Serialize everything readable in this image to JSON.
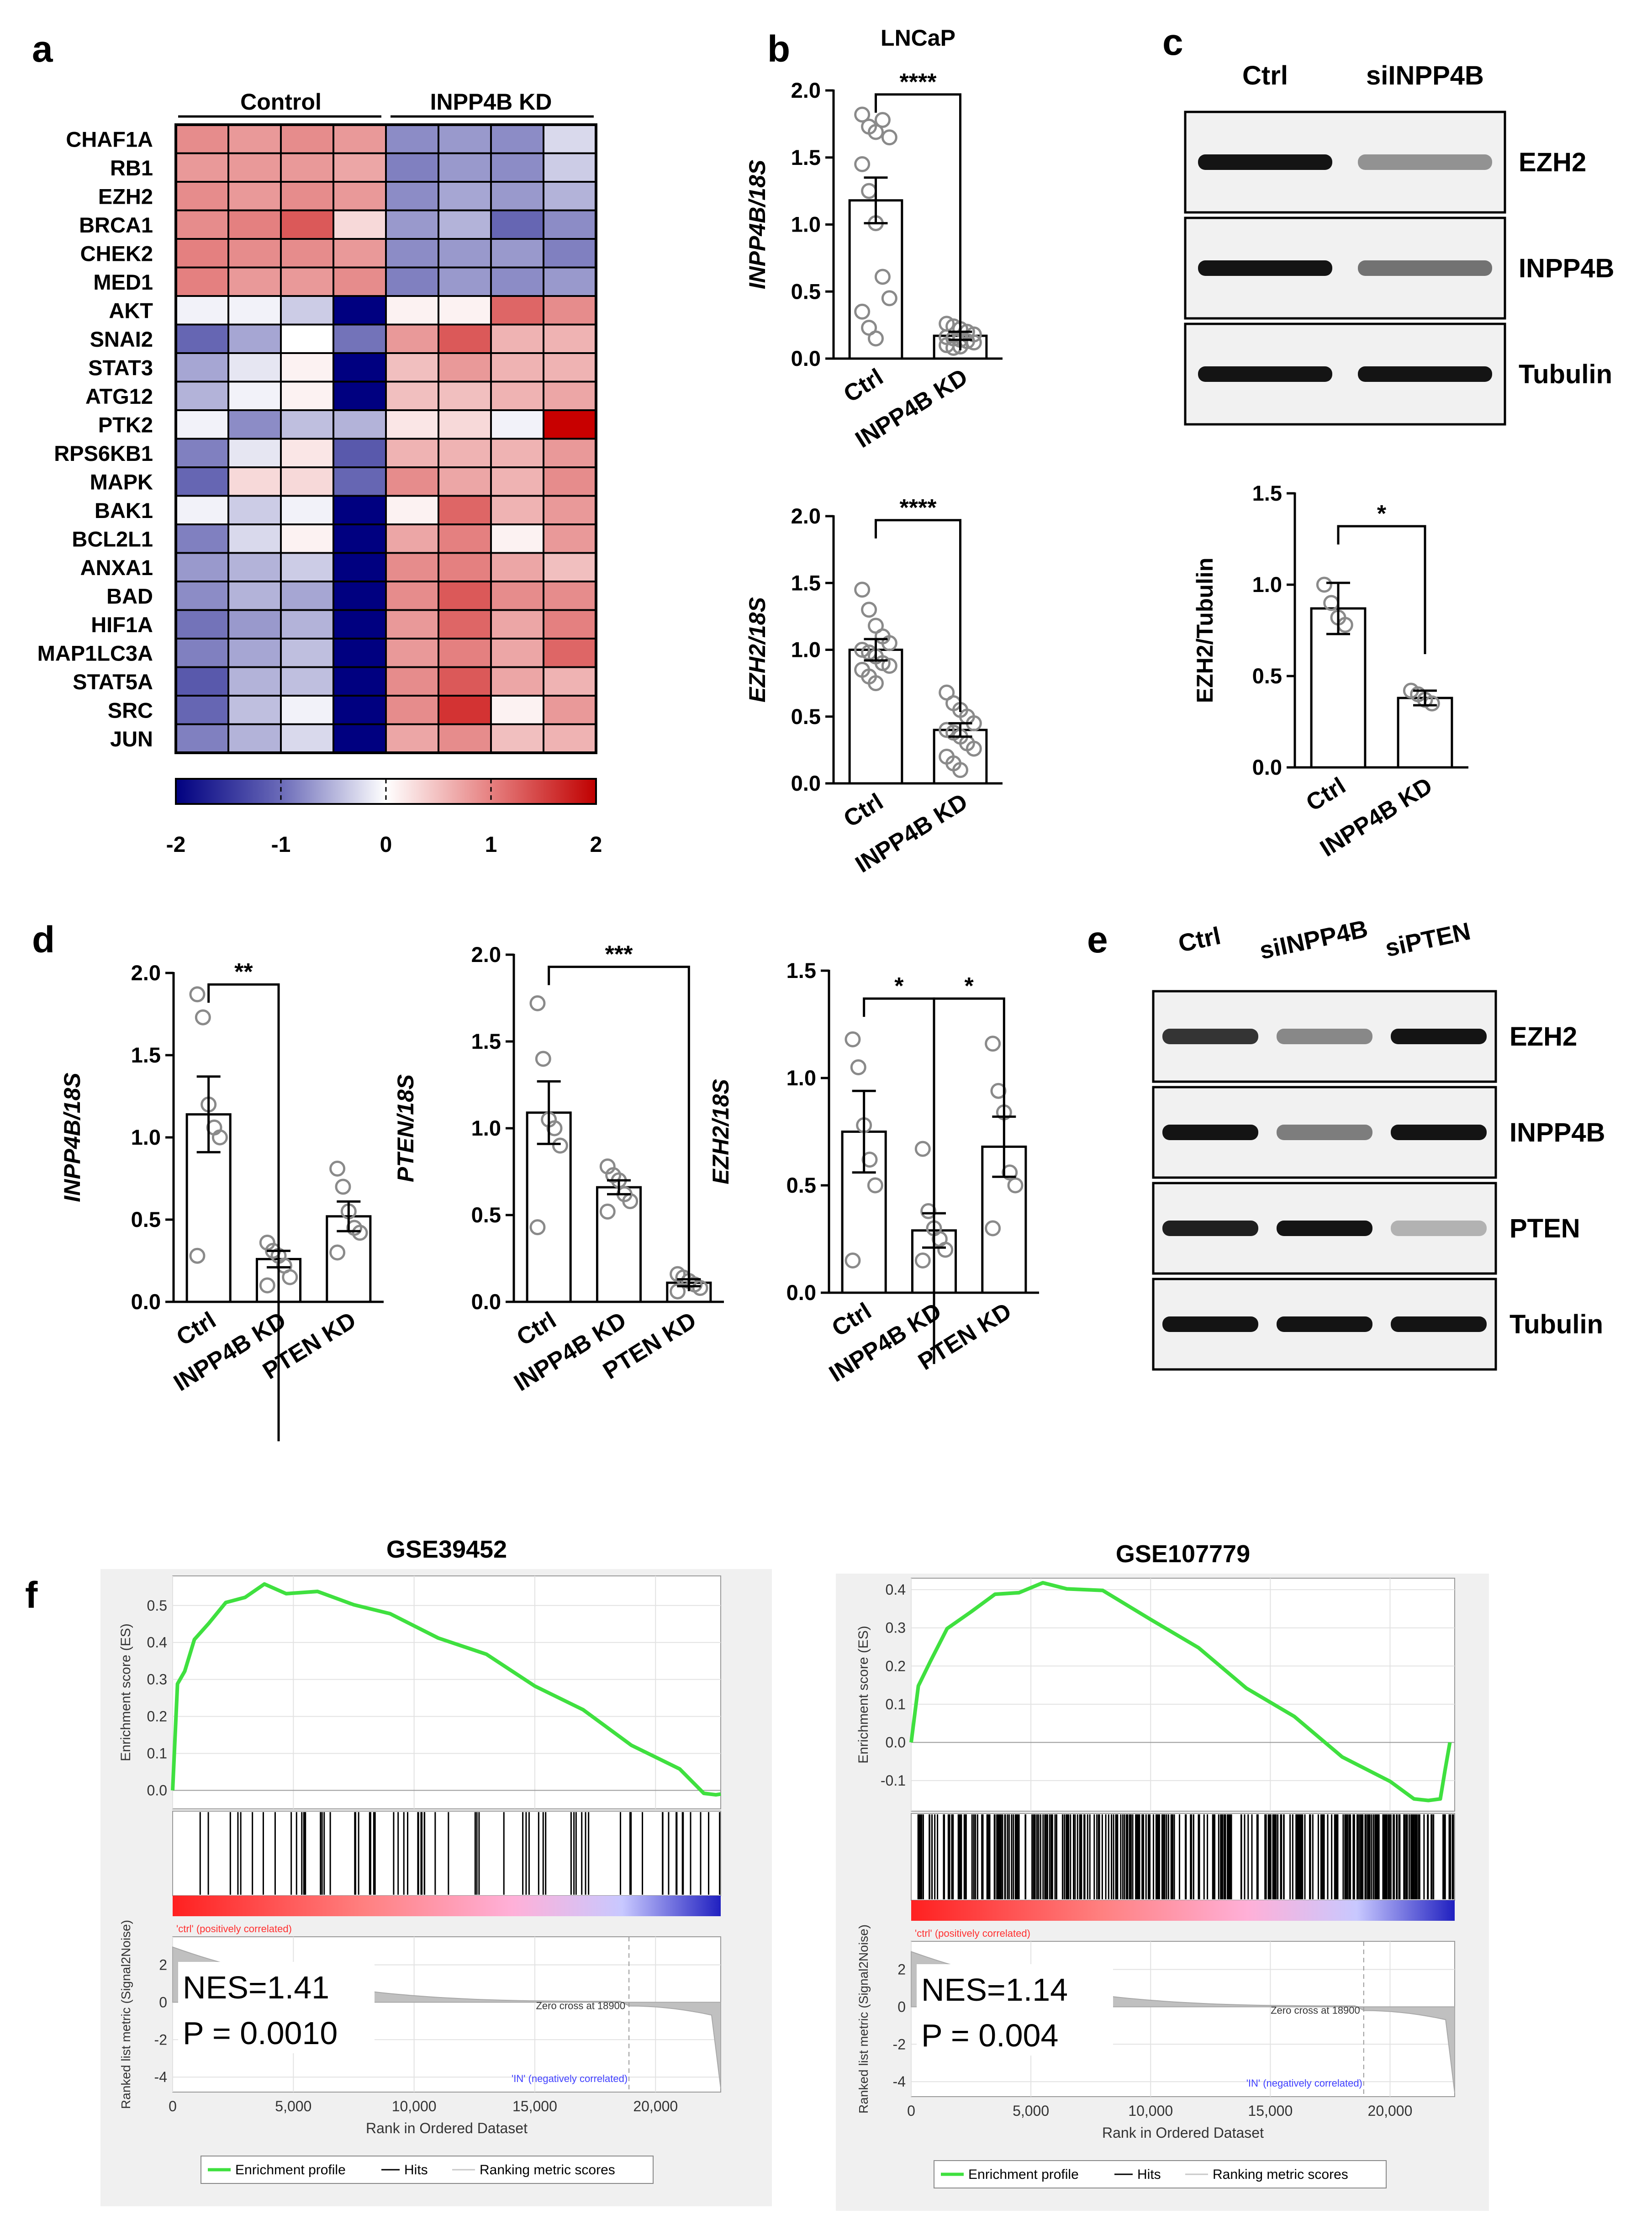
{
  "panels": {
    "a": "a",
    "b": "b",
    "c": "c",
    "d": "d",
    "e": "e",
    "f": "f"
  },
  "colors": {
    "red": "#c00000",
    "blue": "#000080",
    "white": "#ffffff",
    "green": "#3fe03f",
    "gray": "#c8c8c8"
  },
  "chart_data": [
    {
      "id": "a",
      "type": "heatmap",
      "group_labels": [
        "Control",
        "INPP4B KD"
      ],
      "genes": [
        "CHAF1A",
        "RB1",
        "EZH2",
        "BRCA1",
        "CHEK2",
        "MED1",
        "AKT",
        "SNAI2",
        "STAT3",
        "ATG12",
        "PTK2",
        "RPS6KB1",
        "MAPK",
        "BAK1",
        "BCL2L1",
        "ANXA1",
        "BAD",
        "HIF1A",
        "MAP1LC3A",
        "STAT5A",
        "SRC",
        "JUN"
      ],
      "values": [
        [
          0.9,
          0.8,
          0.9,
          0.8,
          -0.9,
          -0.8,
          -0.9,
          -0.3
        ],
        [
          0.8,
          0.8,
          0.8,
          0.7,
          -1.0,
          -0.8,
          -0.9,
          -0.4
        ],
        [
          0.9,
          0.8,
          0.9,
          0.8,
          -0.9,
          -0.7,
          -0.8,
          -0.6
        ],
        [
          0.9,
          1.0,
          1.3,
          0.3,
          -0.8,
          -0.6,
          -1.2,
          -0.9
        ],
        [
          1.0,
          0.9,
          0.9,
          0.8,
          -0.9,
          -0.8,
          -0.8,
          -1.0
        ],
        [
          1.0,
          0.8,
          0.8,
          0.9,
          -1.0,
          -0.8,
          -0.9,
          -0.8
        ],
        [
          -0.1,
          -0.1,
          -0.4,
          -2.0,
          0.1,
          0.1,
          1.2,
          0.9
        ],
        [
          -1.2,
          -0.7,
          0.0,
          -1.1,
          0.8,
          1.3,
          0.6,
          0.6
        ],
        [
          -0.7,
          -0.2,
          0.1,
          -2.0,
          0.5,
          0.8,
          0.6,
          0.6
        ],
        [
          -0.6,
          -0.1,
          0.1,
          -2.0,
          0.5,
          0.5,
          0.6,
          0.7
        ],
        [
          -0.1,
          -0.9,
          -0.5,
          -0.6,
          0.2,
          0.3,
          -0.1,
          2.0
        ],
        [
          -1.0,
          -0.2,
          0.2,
          -1.3,
          0.6,
          0.6,
          0.6,
          0.8
        ],
        [
          -1.2,
          0.3,
          0.3,
          -1.2,
          0.9,
          0.7,
          0.6,
          0.9
        ],
        [
          -0.1,
          -0.4,
          -0.1,
          -2.0,
          0.1,
          1.2,
          0.6,
          0.8
        ],
        [
          -1.0,
          -0.3,
          0.1,
          -2.0,
          0.7,
          1.0,
          0.1,
          0.8
        ],
        [
          -0.8,
          -0.6,
          -0.4,
          -2.0,
          0.9,
          1.0,
          0.7,
          0.5
        ],
        [
          -0.9,
          -0.6,
          -0.7,
          -2.0,
          0.9,
          1.3,
          0.9,
          0.9
        ],
        [
          -1.1,
          -0.8,
          -0.6,
          -2.0,
          0.8,
          1.2,
          0.7,
          1.0
        ],
        [
          -1.0,
          -0.7,
          -0.5,
          -2.0,
          0.8,
          1.0,
          0.7,
          1.2
        ],
        [
          -1.3,
          -0.6,
          -0.5,
          -2.0,
          0.9,
          1.3,
          0.7,
          0.6
        ],
        [
          -1.2,
          -0.5,
          -0.1,
          -2.0,
          0.9,
          1.6,
          0.1,
          0.8
        ],
        [
          -1.0,
          -0.6,
          -0.3,
          -2.0,
          0.7,
          0.9,
          0.5,
          0.6
        ]
      ],
      "colorbar_ticks": [
        "-2",
        "-1",
        "0",
        "1",
        "2"
      ],
      "colorbar_range": [
        -2,
        2
      ]
    },
    {
      "id": "b1",
      "type": "bar",
      "title": "LNCaP",
      "ylabel": "INPP4B/18S",
      "categories": [
        "Ctrl",
        "INPP4B KD"
      ],
      "values": [
        1.18,
        0.17
      ],
      "errors": [
        0.17,
        0.03
      ],
      "points": [
        [
          1.82,
          1.73,
          1.69,
          1.78,
          1.65,
          1.45,
          1.25,
          1.01,
          0.61,
          0.45,
          0.35,
          0.23,
          0.15
        ],
        [
          0.26,
          0.24,
          0.22,
          0.2,
          0.18,
          0.16,
          0.15,
          0.14,
          0.13,
          0.12,
          0.1,
          0.08,
          0.09
        ]
      ],
      "ylim": [
        0,
        2.0
      ],
      "yticks": [
        "0.0",
        "0.5",
        "1.0",
        "1.5",
        "2.0"
      ],
      "yticks_values": [
        0,
        0.5,
        1.0,
        1.5,
        2.0
      ],
      "significance": [
        "****"
      ]
    },
    {
      "id": "b2",
      "type": "bar",
      "ylabel": "EZH2/18S",
      "categories": [
        "Ctrl",
        "INPP4B KD"
      ],
      "values": [
        1.0,
        0.4
      ],
      "errors": [
        0.08,
        0.05
      ],
      "points": [
        [
          1.45,
          1.3,
          1.18,
          1.1,
          1.05,
          1.0,
          0.98,
          0.95,
          0.9,
          0.88,
          0.85,
          0.8,
          0.75
        ],
        [
          0.68,
          0.6,
          0.55,
          0.5,
          0.45,
          0.4,
          0.38,
          0.35,
          0.3,
          0.26,
          0.2,
          0.15,
          0.1
        ]
      ],
      "ylim": [
        0,
        2.0
      ],
      "yticks": [
        "0.0",
        "0.5",
        "1.0",
        "1.5",
        "2.0"
      ],
      "yticks_values": [
        0,
        0.5,
        1.0,
        1.5,
        2.0
      ],
      "significance": [
        "****"
      ]
    },
    {
      "id": "c",
      "type": "bar",
      "ylabel": "EZH2/Tubulin",
      "categories": [
        "Ctrl",
        "INPP4B KD"
      ],
      "values": [
        0.87,
        0.38
      ],
      "errors": [
        0.14,
        0.04
      ],
      "points": [
        [
          1.0,
          0.9,
          0.82,
          0.78
        ],
        [
          0.42,
          0.4,
          0.37,
          0.35
        ]
      ],
      "ylim": [
        0,
        1.5
      ],
      "yticks": [
        "0.0",
        "0.5",
        "1.0",
        "1.5"
      ],
      "yticks_values": [
        0,
        0.5,
        1.0,
        1.5
      ],
      "significance": [
        "*"
      ]
    },
    {
      "id": "d1",
      "type": "bar",
      "ylabel": "INPP4B/18S",
      "categories": [
        "Ctrl",
        "INPP4B KD",
        "PTEN KD"
      ],
      "values": [
        1.14,
        0.26,
        0.52
      ],
      "errors": [
        0.23,
        0.05,
        0.09
      ],
      "points": [
        [
          1.87,
          1.73,
          1.2,
          1.06,
          1.0,
          0.28
        ],
        [
          0.36,
          0.31,
          0.28,
          0.22,
          0.15,
          0.1
        ],
        [
          0.81,
          0.7,
          0.55,
          0.45,
          0.42,
          0.3
        ]
      ],
      "ylim": [
        0,
        2.0
      ],
      "yticks": [
        "0.0",
        "0.5",
        "1.0",
        "1.5",
        "2.0"
      ],
      "yticks_values": [
        0,
        0.5,
        1.0,
        1.5,
        2.0
      ],
      "significance": [
        "**"
      ]
    },
    {
      "id": "d2",
      "type": "bar",
      "ylabel": "PTEN/18S",
      "categories": [
        "Ctrl",
        "INPP4B KD",
        "PTEN KD"
      ],
      "values": [
        1.09,
        0.66,
        0.11
      ],
      "errors": [
        0.18,
        0.04,
        0.02
      ],
      "points": [
        [
          1.72,
          1.4,
          1.05,
          1.0,
          0.9,
          0.43
        ],
        [
          0.78,
          0.73,
          0.7,
          0.62,
          0.58,
          0.52
        ],
        [
          0.16,
          0.14,
          0.12,
          0.1,
          0.08,
          0.06
        ]
      ],
      "ylim": [
        0,
        2.0
      ],
      "yticks": [
        "0.0",
        "0.5",
        "1.0",
        "1.5",
        "2.0"
      ],
      "yticks_values": [
        0,
        0.5,
        1.0,
        1.5,
        2.0
      ],
      "significance": [
        "***"
      ]
    },
    {
      "id": "d3",
      "type": "bar",
      "ylabel": "EZH2/18S",
      "categories": [
        "Ctrl",
        "INPP4B KD",
        "PTEN KD"
      ],
      "values": [
        0.75,
        0.29,
        0.68
      ],
      "errors": [
        0.19,
        0.08,
        0.14
      ],
      "points": [
        [
          1.18,
          1.05,
          0.78,
          0.62,
          0.5,
          0.15
        ],
        [
          0.67,
          0.38,
          0.3,
          0.25,
          0.2,
          0.15
        ],
        [
          1.16,
          0.94,
          0.84,
          0.56,
          0.5,
          0.3
        ]
      ],
      "ylim": [
        0,
        1.5
      ],
      "yticks": [
        "0.0",
        "0.5",
        "1.0",
        "1.5"
      ],
      "yticks_values": [
        0,
        0.5,
        1.0,
        1.5
      ],
      "significance": [
        "*",
        "*"
      ]
    },
    {
      "id": "f1",
      "type": "line",
      "title": "GSE39452",
      "ylabel": "Enrichment score (ES)",
      "xlabel": "Rank in Ordered Dataset",
      "metric_label": "Ranked list metric (Signal2Noise)",
      "x": [
        0,
        200,
        500,
        900,
        1500,
        2200,
        3000,
        3800,
        4700,
        6000,
        7500,
        9000,
        11000,
        13000,
        15000,
        17000,
        19000,
        21000,
        22000,
        22500,
        22700
      ],
      "y": [
        0.0,
        0.28,
        0.33,
        0.4,
        0.46,
        0.5,
        0.53,
        0.55,
        0.54,
        0.53,
        0.51,
        0.47,
        0.42,
        0.36,
        0.29,
        0.21,
        0.13,
        0.05,
        0.0,
        -0.02,
        -0.01
      ],
      "xlim": [
        0,
        22700
      ],
      "ylim": [
        -0.05,
        0.58
      ],
      "yticks": [
        "0.0",
        "0.1",
        "0.2",
        "0.3",
        "0.4",
        "0.5"
      ],
      "yticks_values": [
        0,
        0.1,
        0.2,
        0.3,
        0.4,
        0.5
      ],
      "xticks": [
        "0",
        "5,000",
        "10,000",
        "15,000",
        "20,000"
      ],
      "xticks_values": [
        0,
        5000,
        10000,
        15000,
        20000
      ],
      "metric_yticks": [
        "2",
        "0",
        "-2",
        "-4"
      ],
      "metric_yticks_values": [
        2,
        0,
        -2,
        -4
      ],
      "pos_label": "'ctrl' (positively correlated)",
      "neg_label": "'IN' (negatively correlated)",
      "zero_cross": "Zero cross at 18900",
      "zero_cross_value": 18900,
      "nes": "NES=1.41",
      "pval": "P = 0.0010",
      "legend": [
        "Enrichment profile",
        "Hits",
        "Ranking metric scores"
      ]
    },
    {
      "id": "f2",
      "type": "line",
      "title": "GSE107779",
      "ylabel": "Enrichment score (ES)",
      "xlabel": "Rank in Ordered Dataset",
      "metric_label": "Ranked list metric (Signal2Noise)",
      "x": [
        0,
        300,
        800,
        1500,
        2500,
        3500,
        4500,
        5500,
        6500,
        8000,
        10000,
        12000,
        14000,
        16000,
        18000,
        20000,
        21000,
        21600,
        22100,
        22300,
        22500
      ],
      "y": [
        0.0,
        0.14,
        0.22,
        0.29,
        0.35,
        0.38,
        0.4,
        0.41,
        0.41,
        0.39,
        0.33,
        0.24,
        0.15,
        0.06,
        -0.03,
        -0.11,
        -0.14,
        -0.16,
        -0.14,
        -0.08,
        0.0
      ],
      "xlim": [
        0,
        22700
      ],
      "ylim": [
        -0.18,
        0.43
      ],
      "yticks": [
        "-0.1",
        "0.0",
        "0.1",
        "0.2",
        "0.3",
        "0.4"
      ],
      "yticks_values": [
        -0.1,
        0,
        0.1,
        0.2,
        0.3,
        0.4
      ],
      "xticks": [
        "0",
        "5,000",
        "10,000",
        "15,000",
        "20,000"
      ],
      "xticks_values": [
        0,
        5000,
        10000,
        15000,
        20000
      ],
      "metric_yticks": [
        "2",
        "0",
        "-2",
        "-4"
      ],
      "metric_yticks_values": [
        2,
        0,
        -2,
        -4
      ],
      "pos_label": "'ctrl' (positively correlated)",
      "neg_label": "'IN' (negatively correlated)",
      "zero_cross": "Zero cross at 18900",
      "zero_cross_value": 18900,
      "nes": "NES=1.14",
      "pval": "P = 0.004",
      "legend": [
        "Enrichment profile",
        "Hits",
        "Ranking metric scores"
      ]
    }
  ],
  "blots": [
    {
      "id": "c",
      "columns": [
        "Ctrl",
        "siINPP4B"
      ],
      "rows": [
        "EZH2",
        "INPP4B",
        "Tubulin"
      ],
      "intensity": [
        [
          1.0,
          0.4
        ],
        [
          1.0,
          0.55
        ],
        [
          1.0,
          1.0
        ]
      ]
    },
    {
      "id": "e",
      "columns": [
        "Ctrl",
        "siINPP4B",
        "siPTEN"
      ],
      "rows": [
        "EZH2",
        "INPP4B",
        "PTEN",
        "Tubulin"
      ],
      "intensity": [
        [
          0.85,
          0.45,
          1.0
        ],
        [
          1.0,
          0.5,
          1.0
        ],
        [
          0.95,
          1.0,
          0.25
        ],
        [
          1.0,
          1.0,
          1.0
        ]
      ]
    }
  ]
}
